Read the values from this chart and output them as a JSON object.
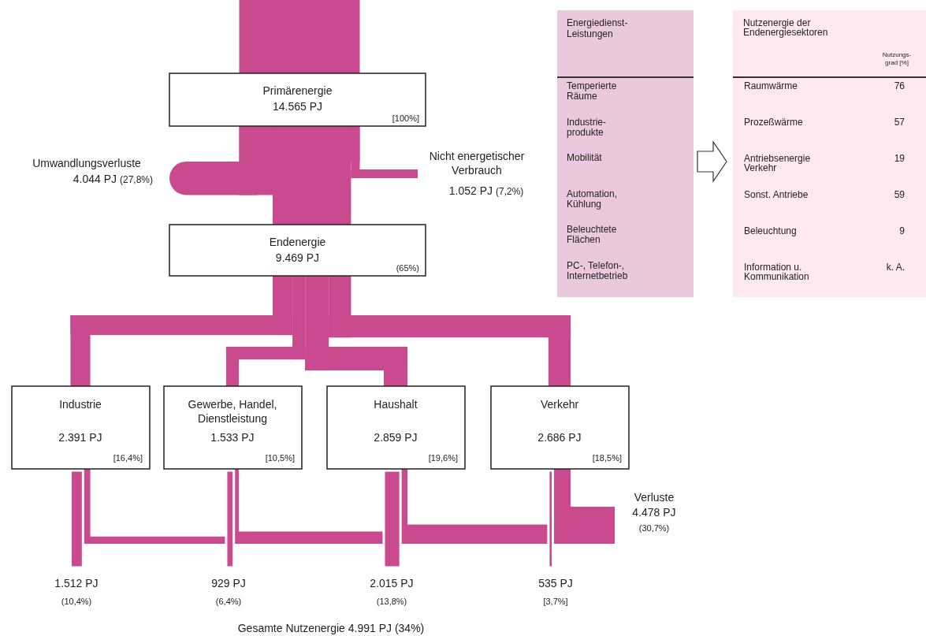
{
  "chart_data": [
    {
      "type": "other",
      "color": "#c94a8f",
      "categories": [
        "Primärenergie",
        "Umwandlungsverluste",
        "Nicht energetischer\nVerbrauch",
        "Endenergie",
        "Industrie",
        "Gewerbe, Handel,\nDienstleistung",
        "Haushalt",
        "Verkehr",
        "Verluste",
        null,
        null,
        null,
        null
      ],
      "values": [
        14565,
        4044,
        1052,
        9469,
        2391,
        1533,
        2859,
        2686,
        4478,
        1512,
        929,
        2015,
        535
      ],
      "value_labels": [
        "14.565 PJ",
        "4.044 PJ",
        "1.052 PJ",
        "9.469 PJ",
        "2.391 PJ",
        "1.533 PJ",
        "2.859 PJ",
        "2.686 PJ",
        "4.478 PJ",
        "1.512 PJ",
        "929 PJ",
        "2.015 PJ",
        "535 PJ"
      ],
      "annotations": [
        "[100%]",
        "(27,8%)",
        "(7,2%)",
        "(65%)",
        "[16,4%]",
        "[10,5%]",
        "[19,6%]",
        "[18,5%]",
        "(30,7%)",
        "(10,4%)",
        "(6,4%)",
        "(13,8%)",
        "[3,7%]",
        "Gesamte Nutzenergie 4.991 PJ (34%)"
      ]
    },
    {
      "type": "other",
      "title": "Energiedienst-\nLeistungen",
      "annotations": [
        "Temperierte\nRäume",
        "Industrie-\nprodukte",
        "Mobilität",
        "Automation,\nKühlung",
        "Beleuchtete\nFlächen",
        "PC-, Telefon-,\nInternetbetrieb"
      ]
    },
    {
      "type": "other",
      "title": "Nutzenergie der\nEndenergiesektoren",
      "ylabel": "Nutzungs-\ngrad [%]",
      "categories": [
        "Raumwärme",
        "Prozeßwärme",
        "Antriebsenergie\nVerkehr",
        "Sonst. Antriebe",
        "Beleuchtung",
        "Information u.\nKommunikation"
      ],
      "value_labels": [
        "76",
        "57",
        "19",
        "59",
        "9",
        "k. A."
      ]
    }
  ]
}
